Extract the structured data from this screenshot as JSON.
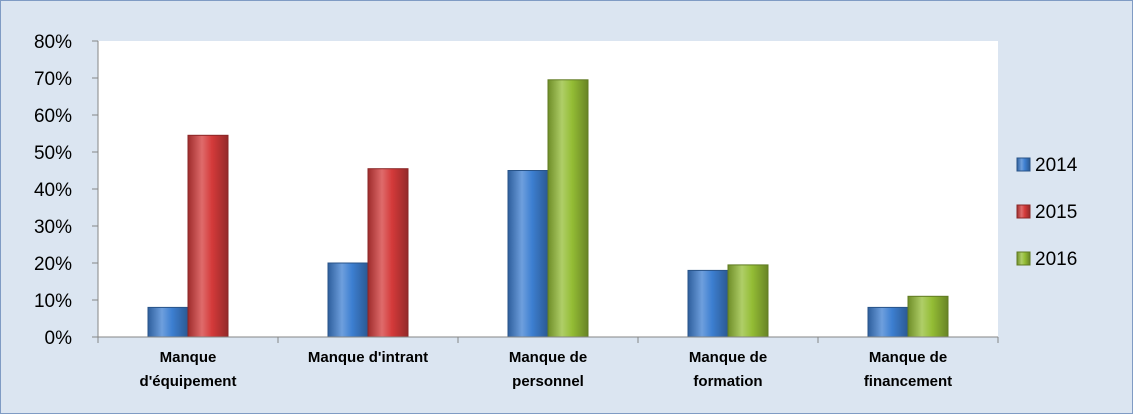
{
  "chart_data": {
    "type": "bar",
    "title": "",
    "xlabel": "",
    "ylabel": "",
    "categories": [
      [
        "Manque",
        "d'équipement"
      ],
      [
        "Manque d'intrant"
      ],
      [
        "Manque de",
        "personnel"
      ],
      [
        "Manque de",
        "formation"
      ],
      [
        "Manque de",
        "financement"
      ]
    ],
    "series": [
      {
        "name": "2014",
        "color": "#3d7fd1",
        "values": [
          8,
          20,
          45,
          18,
          8
        ]
      },
      {
        "name": "2015",
        "color": "#d43a3a",
        "values": [
          54.5,
          45.5,
          null,
          null,
          null
        ]
      },
      {
        "name": "2016",
        "color": "#94bd35",
        "values": [
          null,
          null,
          69.5,
          19.5,
          11
        ]
      }
    ],
    "ylim": [
      0,
      80
    ],
    "yticks": [
      0,
      10,
      20,
      30,
      40,
      50,
      60,
      70,
      80
    ],
    "ytick_labels": [
      "0%",
      "10%",
      "20%",
      "30%",
      "40%",
      "50%",
      "60%",
      "70%",
      "80%"
    ],
    "value_unit": "%",
    "grid": false,
    "legend_position": "right",
    "background_color": "#dbe5f1",
    "plot_background_color": "#ffffff"
  }
}
